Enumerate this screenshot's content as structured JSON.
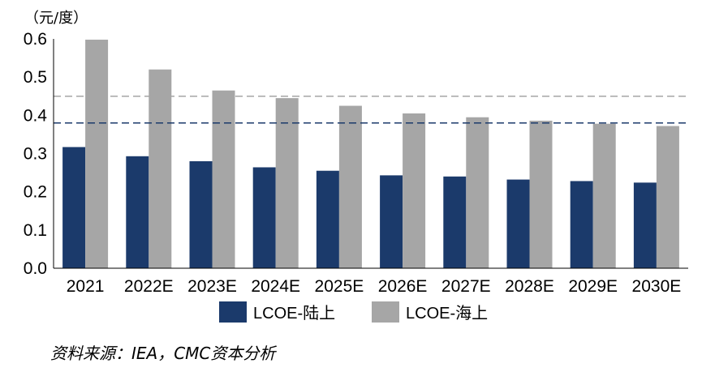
{
  "chart_data": {
    "type": "bar",
    "unit_label": "（元/度）",
    "categories": [
      "2021",
      "2022E",
      "2023E",
      "2024E",
      "2025E",
      "2026E",
      "2027E",
      "2028E",
      "2029E",
      "2030E"
    ],
    "series": [
      {
        "name": "LCOE-陆上",
        "color": "#1b3a6b",
        "values": [
          0.317,
          0.293,
          0.28,
          0.264,
          0.255,
          0.243,
          0.24,
          0.232,
          0.228,
          0.224
        ]
      },
      {
        "name": "LCOE-海上",
        "color": "#a6a6a6",
        "values": [
          0.598,
          0.52,
          0.465,
          0.445,
          0.425,
          0.405,
          0.395,
          0.386,
          0.378,
          0.372
        ]
      }
    ],
    "reference_lines": [
      {
        "value": 0.45,
        "color": "#a6a6a6",
        "style": "dashed"
      },
      {
        "value": 0.38,
        "color": "#1b3a6b",
        "style": "dashed"
      }
    ],
    "yticks": [
      "0.0",
      "0.1",
      "0.2",
      "0.3",
      "0.4",
      "0.5",
      "0.6"
    ],
    "ylim": [
      0,
      0.6
    ],
    "legend_position": "bottom-center",
    "grid": false
  },
  "source_note": "资料来源：IEA，CMC资本分析"
}
